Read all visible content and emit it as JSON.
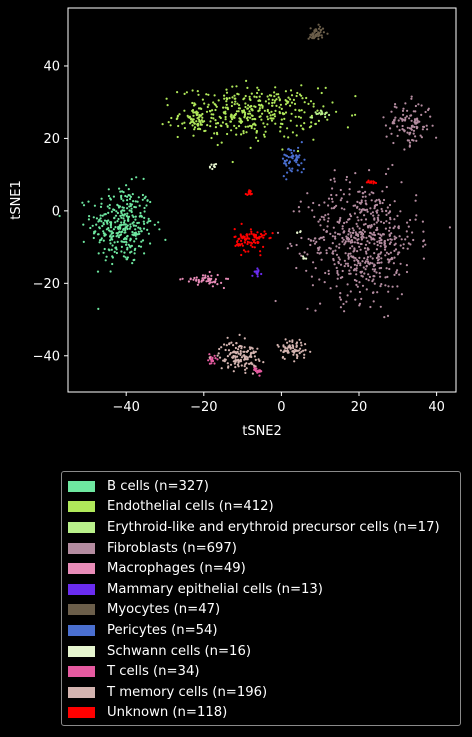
{
  "chart_data": {
    "type": "scatter",
    "xlabel": "tSNE2",
    "ylabel": "tSNE1",
    "xlim": [
      -55,
      45
    ],
    "ylim": [
      -50,
      56
    ],
    "xticks": [
      -40,
      -20,
      0,
      20,
      40
    ],
    "yticks": [
      -40,
      -20,
      0,
      20,
      40
    ],
    "grid": false,
    "legend_placement": "below",
    "clusters": [
      {
        "name": "B cells (n=327)",
        "color": "#6ee7a0",
        "n": 327,
        "parts": [
          {
            "cx": -41,
            "cy": -4,
            "sx": 4,
            "sy": 5.5,
            "w": 1
          }
        ]
      },
      {
        "name": "Endothelial cells (n=412)",
        "color": "#b0e85a",
        "n": 412,
        "parts": [
          {
            "cx": -8,
            "cy": 27,
            "sx": 9,
            "sy": 3.5,
            "w": 0.9
          },
          {
            "cx": -22,
            "cy": 25,
            "sx": 1.5,
            "sy": 1.5,
            "w": 0.1
          }
        ]
      },
      {
        "name": "Erythroid-like and erythroid precursor cells (n=17)",
        "color": "#b9f08a",
        "n": 17,
        "parts": [
          {
            "cx": 10,
            "cy": 27,
            "sx": 1.2,
            "sy": 0.6,
            "w": 1
          }
        ]
      },
      {
        "name": "Fibroblasts (n=697)",
        "color": "#b48ca0",
        "n": 697,
        "parts": [
          {
            "cx": 21,
            "cy": -8,
            "sx": 7,
            "sy": 8,
            "w": 0.85
          },
          {
            "cx": 33,
            "cy": 24,
            "sx": 3,
            "sy": 3,
            "w": 0.15
          }
        ]
      },
      {
        "name": "Macrophages (n=49)",
        "color": "#e88cb8",
        "n": 49,
        "parts": [
          {
            "cx": -20,
            "cy": -19,
            "sx": 2.5,
            "sy": 0.8,
            "w": 1
          }
        ]
      },
      {
        "name": "Mammary epithelial cells (n=13)",
        "color": "#6a2cf0",
        "n": 13,
        "parts": [
          {
            "cx": -6,
            "cy": -17,
            "sx": 0.5,
            "sy": 0.5,
            "w": 1
          }
        ]
      },
      {
        "name": "Myocytes (n=47)",
        "color": "#6b5e4a",
        "n": 47,
        "parts": [
          {
            "cx": 9,
            "cy": 49,
            "sx": 1,
            "sy": 1,
            "w": 1
          }
        ]
      },
      {
        "name": "Pericytes (n=54)",
        "color": "#4a6fd0",
        "n": 54,
        "parts": [
          {
            "cx": 3,
            "cy": 14,
            "sx": 1.5,
            "sy": 2,
            "w": 1
          }
        ]
      },
      {
        "name": "Schwann cells (n=16)",
        "color": "#e6f5cf",
        "n": 16,
        "parts": [
          {
            "cx": -18,
            "cy": 12,
            "sx": 0.7,
            "sy": 0.5,
            "w": 0.5
          },
          {
            "cx": 5,
            "cy": -6,
            "sx": 0.5,
            "sy": 0.3,
            "w": 0.25
          },
          {
            "cx": 6,
            "cy": -13,
            "sx": 0.3,
            "sy": 0.3,
            "w": 0.25
          }
        ]
      },
      {
        "name": "T cells (n=34)",
        "color": "#e65aa0",
        "n": 34,
        "parts": [
          {
            "cx": -6,
            "cy": -44,
            "sx": 0.6,
            "sy": 0.6,
            "w": 0.5
          },
          {
            "cx": -18,
            "cy": -41,
            "sx": 0.6,
            "sy": 0.6,
            "w": 0.5
          }
        ]
      },
      {
        "name": "T memory cells (n=196)",
        "color": "#d4b4b0",
        "n": 196,
        "parts": [
          {
            "cx": -11,
            "cy": -40,
            "sx": 2.5,
            "sy": 2,
            "w": 0.65
          },
          {
            "cx": 3,
            "cy": -38,
            "sx": 2,
            "sy": 1.5,
            "w": 0.35
          }
        ]
      },
      {
        "name": "Unknown (n=118)",
        "color": "#ff0000",
        "n": 118,
        "parts": [
          {
            "cx": -8,
            "cy": -8,
            "sx": 2,
            "sy": 1.6,
            "w": 0.8
          },
          {
            "cx": -8,
            "cy": 5,
            "sx": 0.5,
            "sy": 0.4,
            "w": 0.1
          },
          {
            "cx": 23,
            "cy": 8,
            "sx": 0.6,
            "sy": 0.4,
            "w": 0.1
          }
        ]
      }
    ]
  }
}
